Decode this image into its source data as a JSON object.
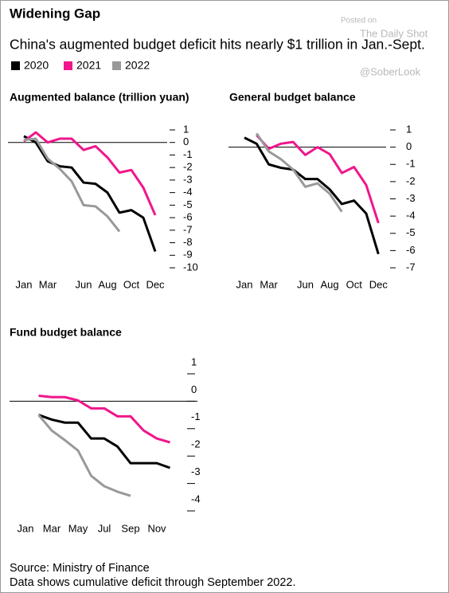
{
  "title": "Widening Gap",
  "subtitle": "China's augmented budget deficit hits nearly $1 trillion in Jan.-Sept.",
  "watermark": [
    "Posted on",
    "The Daily Shot",
    "@SoberLook"
  ],
  "source": "Source: Ministry of Finance",
  "note": "Data shows cumulative deficit through September 2022.",
  "chart_data": [
    {
      "type": "line",
      "title": "Augmented balance (trillion yuan)",
      "categories": [
        "Jan",
        null,
        "Mar",
        null,
        null,
        "Jun",
        null,
        "Aug",
        null,
        "Oct",
        null,
        "Dec"
      ],
      "ylim": [
        -10,
        1
      ],
      "yticks": [
        1,
        0,
        -1,
        -2,
        -3,
        -4,
        -5,
        -6,
        -7,
        -8,
        -9,
        -10
      ],
      "series": [
        {
          "name": "2020",
          "color": "#000000",
          "values": [
            0.5,
            0,
            -1.5,
            -1.9,
            -2,
            -3.2,
            -3.3,
            -4,
            -5.6,
            -5.4,
            -6,
            -8.7
          ]
        },
        {
          "name": "2021",
          "color": "#f0168c",
          "values": [
            0.1,
            0.8,
            0,
            0.3,
            0.3,
            -0.6,
            -0.3,
            -1.2,
            -2.4,
            -2.2,
            -3.6,
            -5.8
          ]
        },
        {
          "name": "2022",
          "color": "#999999",
          "values": [
            0.2,
            0.3,
            -1.3,
            -2.1,
            -3.1,
            -5,
            -5.1,
            -5.9,
            -7.1,
            null,
            null,
            null
          ]
        }
      ]
    },
    {
      "type": "line",
      "title": "General budget balance",
      "categories": [
        "Jan",
        null,
        "Mar",
        null,
        null,
        "Jun",
        null,
        "Aug",
        null,
        "Oct",
        null,
        "Dec"
      ],
      "ylim": [
        -7,
        1
      ],
      "yticks": [
        1,
        0,
        -1,
        -2,
        -3,
        -4,
        -5,
        -6,
        -7
      ],
      "series": [
        {
          "color": "#000000",
          "values": [
            0.55,
            0.2,
            -1,
            -1.2,
            -1.3,
            -1.85,
            -1.85,
            -2.45,
            -3.3,
            -3.1,
            -3.85,
            -6.2
          ]
        },
        {
          "color": "#f0168c",
          "values": [
            null,
            0.7,
            -0.1,
            0.2,
            0.3,
            -0.45,
            0,
            -0.4,
            -1.5,
            -1.15,
            -2.2,
            -4.4
          ]
        },
        {
          "color": "#999999",
          "values": [
            null,
            0.8,
            -0.25,
            -0.7,
            -1.3,
            -2.3,
            -2.1,
            -2.7,
            -3.75,
            null,
            null,
            null
          ]
        }
      ]
    },
    {
      "type": "line",
      "title": "Fund budget balance",
      "categories": [
        "Jan",
        null,
        "Mar",
        null,
        "May",
        null,
        "Jul",
        null,
        "Sep",
        null,
        "Nov",
        null
      ],
      "ylim": [
        -4,
        1
      ],
      "yticks": [
        1,
        0,
        -1,
        -2,
        -3,
        -4
      ],
      "series": [
        {
          "color": "#000000",
          "values": [
            null,
            -0.5,
            -0.67,
            -0.78,
            -0.78,
            -1.36,
            -1.36,
            -1.65,
            -2.26,
            -2.26,
            -2.26,
            -2.43
          ]
        },
        {
          "color": "#f0168c",
          "values": [
            null,
            0.2,
            0.15,
            0.15,
            0.03,
            -0.26,
            -0.26,
            -0.55,
            -0.55,
            -1.07,
            -1.36,
            -1.5
          ]
        },
        {
          "color": "#999999",
          "values": [
            null,
            -0.5,
            -1.07,
            -1.42,
            -1.8,
            -2.72,
            -3.1,
            -3.3,
            -3.45,
            null,
            null,
            null
          ]
        }
      ]
    }
  ]
}
